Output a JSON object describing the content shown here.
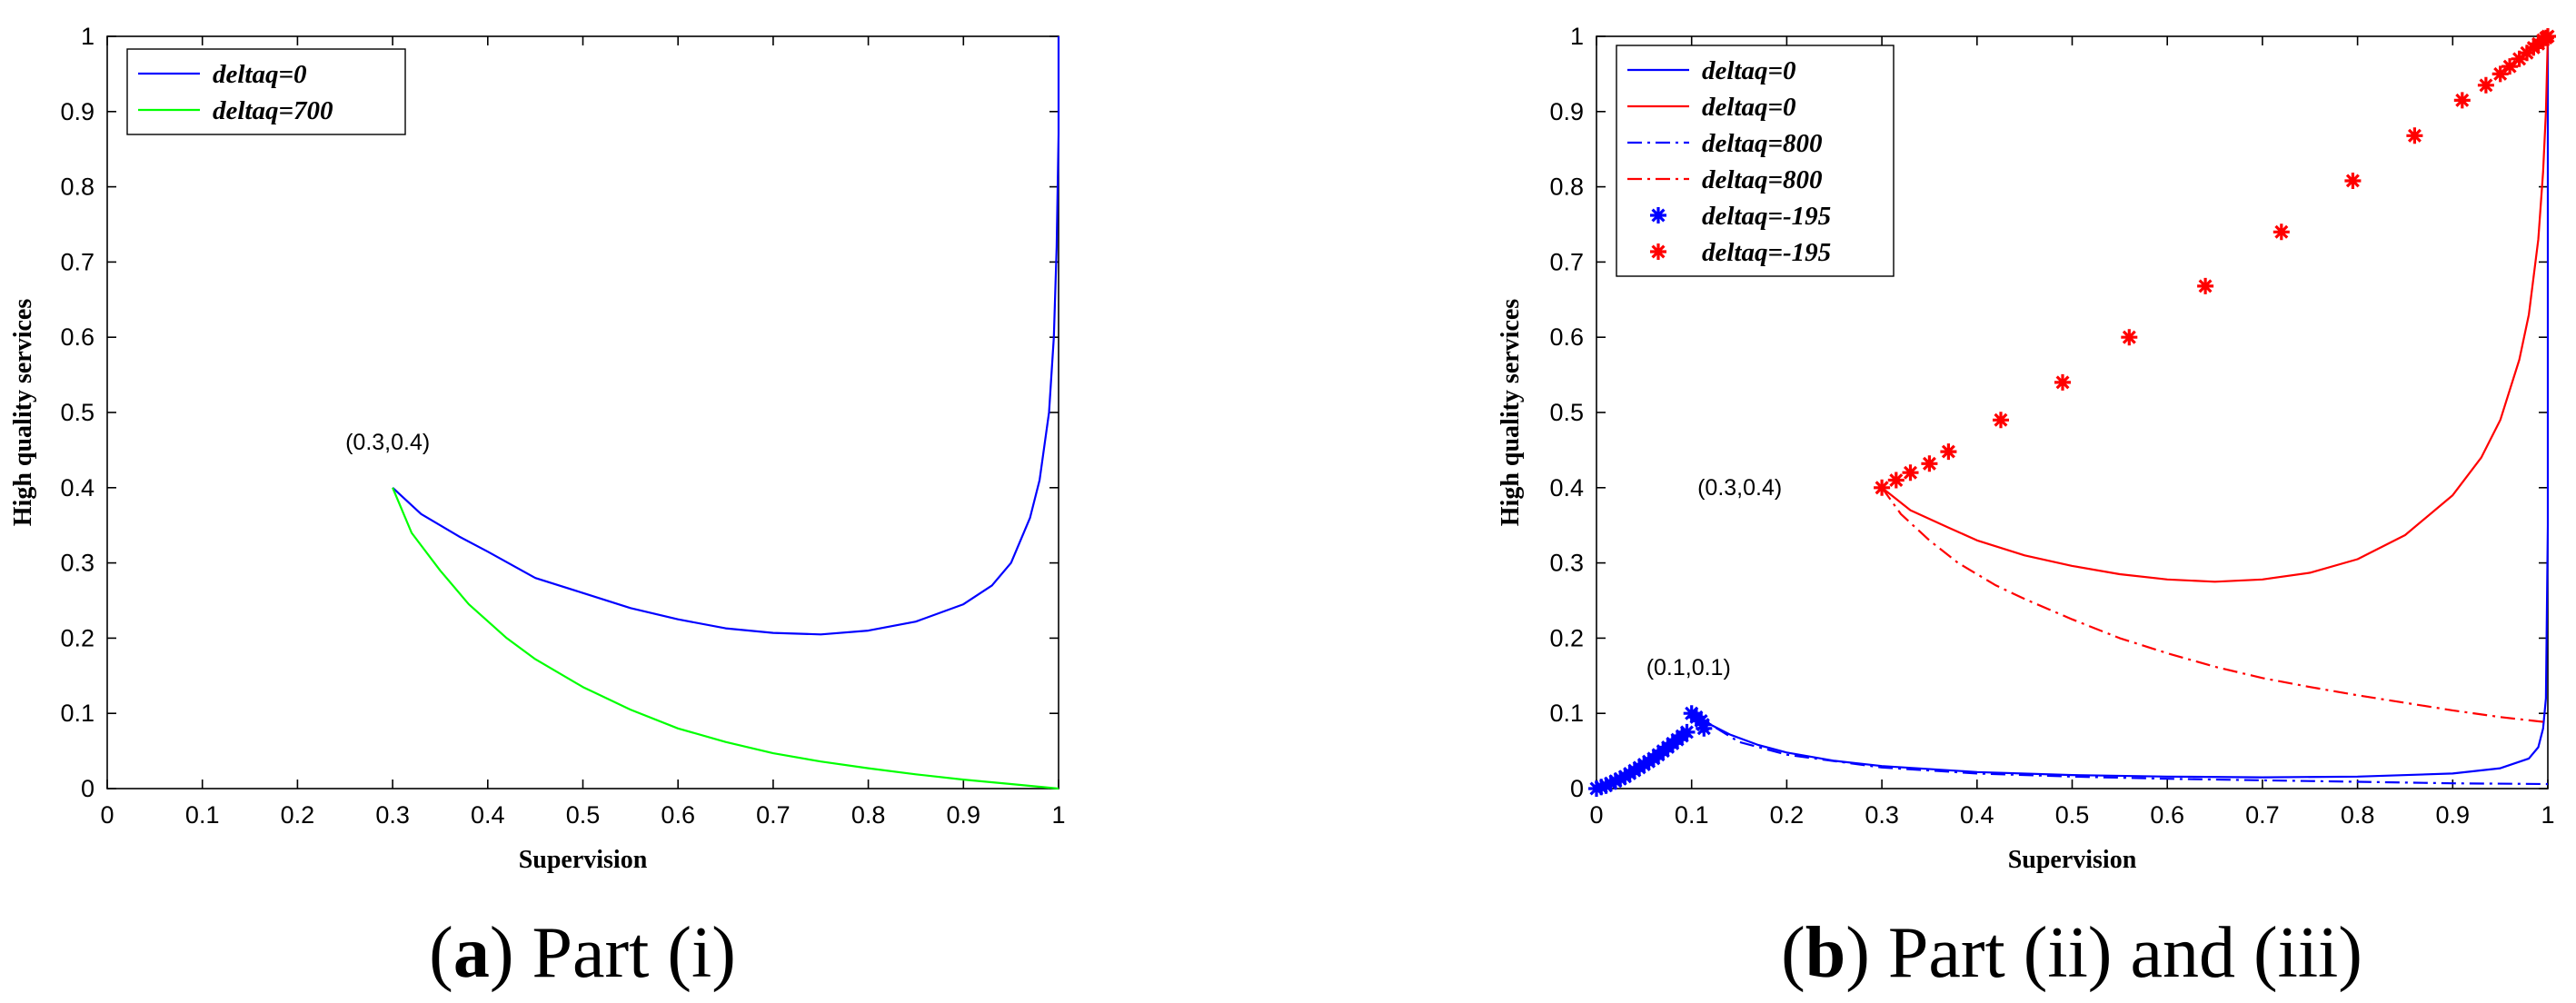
{
  "chart_data": [
    {
      "type": "line",
      "caption": {
        "open": "(",
        "letter": "a",
        "close": ")",
        "text": " Part (i)"
      },
      "xlabel": "Supervision",
      "ylabel": "High quality services",
      "xlim": [
        0,
        1
      ],
      "ylim": [
        0,
        1
      ],
      "xticks": [
        "0",
        "0.1",
        "0.2",
        "0.3",
        "0.4",
        "0.5",
        "0.6",
        "0.7",
        "0.8",
        "0.9",
        "1"
      ],
      "yticks": [
        "0",
        "0.1",
        "0.2",
        "0.3",
        "0.4",
        "0.5",
        "0.6",
        "0.7",
        "0.8",
        "0.9",
        "1"
      ],
      "grid": false,
      "legend_position": "top-left",
      "annotations": [
        {
          "text": "(0.3,0.4)",
          "x": 0.3,
          "y": 0.4
        }
      ],
      "series": [
        {
          "name": "deltaq=0",
          "color": "#0000ff",
          "style": "solid",
          "x": [
            0.3,
            0.33,
            0.37,
            0.4,
            0.45,
            0.5,
            0.55,
            0.6,
            0.65,
            0.7,
            0.75,
            0.8,
            0.85,
            0.9,
            0.93,
            0.95,
            0.97,
            0.98,
            0.99,
            0.995,
            0.998,
            1.0,
            1.0
          ],
          "y": [
            0.4,
            0.365,
            0.335,
            0.315,
            0.28,
            0.26,
            0.24,
            0.225,
            0.213,
            0.207,
            0.205,
            0.21,
            0.222,
            0.245,
            0.27,
            0.3,
            0.36,
            0.41,
            0.5,
            0.6,
            0.72,
            0.87,
            1.0
          ]
        },
        {
          "name": "deltaq=700",
          "color": "#00ff00",
          "style": "solid",
          "x": [
            0.3,
            0.32,
            0.35,
            0.38,
            0.42,
            0.45,
            0.5,
            0.55,
            0.6,
            0.65,
            0.7,
            0.75,
            0.8,
            0.85,
            0.9,
            0.95,
            1.0
          ],
          "y": [
            0.4,
            0.34,
            0.29,
            0.245,
            0.2,
            0.172,
            0.135,
            0.105,
            0.08,
            0.062,
            0.047,
            0.036,
            0.027,
            0.019,
            0.012,
            0.006,
            0.0
          ]
        }
      ]
    },
    {
      "type": "line",
      "caption": {
        "open": "(",
        "letter": "b",
        "close": ")",
        "text": " Part (ii) and (iii)"
      },
      "xlabel": "Supervision",
      "ylabel": "High quality services",
      "xlim": [
        0,
        1
      ],
      "ylim": [
        0,
        1
      ],
      "xticks": [
        "0",
        "0.1",
        "0.2",
        "0.3",
        "0.4",
        "0.5",
        "0.6",
        "0.7",
        "0.8",
        "0.9",
        "1"
      ],
      "yticks": [
        "0",
        "0.1",
        "0.2",
        "0.3",
        "0.4",
        "0.5",
        "0.6",
        "0.7",
        "0.8",
        "0.9",
        "1"
      ],
      "grid": false,
      "legend_position": "top-left",
      "annotations": [
        {
          "text": "(0.3,0.4)",
          "x": 0.3,
          "y": 0.4
        },
        {
          "text": "(0.1,0.1)",
          "x": 0.1,
          "y": 0.1
        }
      ],
      "series": [
        {
          "name": "deltaq=0",
          "color": "#0000ff",
          "style": "solid",
          "x": [
            0.1,
            0.11,
            0.12,
            0.14,
            0.17,
            0.2,
            0.25,
            0.3,
            0.4,
            0.5,
            0.6,
            0.7,
            0.8,
            0.9,
            0.95,
            0.98,
            0.99,
            0.995,
            0.998,
            1.0,
            1.0
          ],
          "y": [
            0.1,
            0.092,
            0.085,
            0.072,
            0.058,
            0.048,
            0.037,
            0.03,
            0.022,
            0.018,
            0.016,
            0.015,
            0.016,
            0.02,
            0.027,
            0.04,
            0.055,
            0.08,
            0.12,
            0.35,
            1.0
          ]
        },
        {
          "name": "deltaq=0",
          "color": "#ff0000",
          "style": "solid",
          "x": [
            0.3,
            0.33,
            0.37,
            0.4,
            0.45,
            0.5,
            0.55,
            0.6,
            0.65,
            0.7,
            0.75,
            0.8,
            0.85,
            0.9,
            0.93,
            0.95,
            0.97,
            0.98,
            0.99,
            0.995,
            0.998,
            1.0
          ],
          "y": [
            0.4,
            0.37,
            0.347,
            0.33,
            0.31,
            0.296,
            0.285,
            0.278,
            0.275,
            0.278,
            0.287,
            0.305,
            0.337,
            0.39,
            0.44,
            0.49,
            0.57,
            0.63,
            0.73,
            0.82,
            0.9,
            1.0
          ]
        },
        {
          "name": "deltaq=800",
          "color": "#0000ff",
          "style": "dashdot",
          "x": [
            0.1,
            0.12,
            0.15,
            0.2,
            0.3,
            0.4,
            0.5,
            0.6,
            0.7,
            0.8,
            0.9,
            1.0
          ],
          "y": [
            0.1,
            0.085,
            0.062,
            0.045,
            0.028,
            0.02,
            0.016,
            0.013,
            0.011,
            0.009,
            0.007,
            0.006
          ]
        },
        {
          "name": "deltaq=800",
          "color": "#ff0000",
          "style": "dashdot",
          "x": [
            0.3,
            0.32,
            0.35,
            0.38,
            0.42,
            0.45,
            0.5,
            0.55,
            0.6,
            0.65,
            0.7,
            0.75,
            0.8,
            0.85,
            0.9,
            0.95,
            1.0
          ],
          "y": [
            0.4,
            0.365,
            0.33,
            0.3,
            0.27,
            0.252,
            0.225,
            0.2,
            0.18,
            0.162,
            0.147,
            0.135,
            0.124,
            0.114,
            0.104,
            0.095,
            0.088
          ]
        },
        {
          "name": "deltaq=-195",
          "color": "#0000ff",
          "style": "star",
          "x": [
            0.0,
            0.005,
            0.01,
            0.015,
            0.02,
            0.025,
            0.03,
            0.035,
            0.04,
            0.045,
            0.05,
            0.055,
            0.06,
            0.065,
            0.07,
            0.075,
            0.08,
            0.085,
            0.09,
            0.095,
            0.1,
            0.105,
            0.11,
            0.112,
            0.113
          ],
          "y": [
            0.0,
            0.002,
            0.004,
            0.007,
            0.01,
            0.013,
            0.016,
            0.02,
            0.024,
            0.028,
            0.032,
            0.036,
            0.04,
            0.045,
            0.05,
            0.055,
            0.06,
            0.065,
            0.07,
            0.075,
            0.1,
            0.095,
            0.09,
            0.085,
            0.08
          ]
        },
        {
          "name": "deltaq=-195",
          "color": "#ff0000",
          "style": "star",
          "x": [
            0.3,
            0.315,
            0.33,
            0.35,
            0.37,
            0.425,
            0.49,
            0.56,
            0.64,
            0.72,
            0.795,
            0.86,
            0.91,
            0.935,
            0.95,
            0.96,
            0.97,
            0.978,
            0.985,
            0.99,
            0.995,
            0.998,
            1.0
          ],
          "y": [
            0.4,
            0.41,
            0.42,
            0.432,
            0.448,
            0.49,
            0.54,
            0.6,
            0.668,
            0.74,
            0.808,
            0.868,
            0.915,
            0.935,
            0.95,
            0.96,
            0.97,
            0.978,
            0.985,
            0.99,
            0.995,
            0.998,
            1.0
          ]
        }
      ]
    }
  ]
}
